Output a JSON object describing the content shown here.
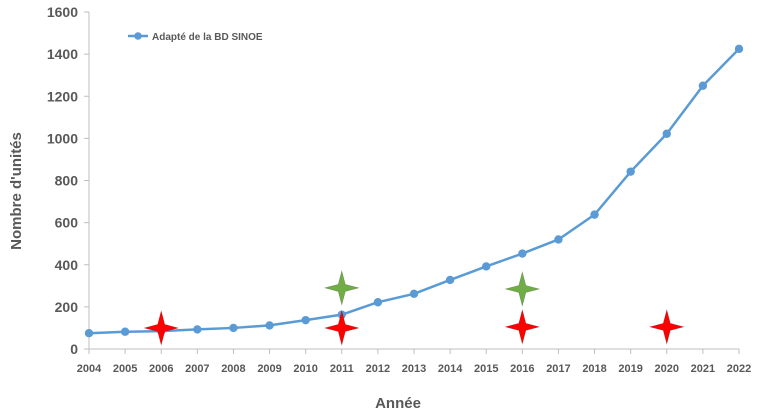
{
  "chart_data": {
    "type": "line",
    "xlabel": "Année",
    "ylabel": "Nombre d'unités",
    "ylim": [
      0,
      1600
    ],
    "yticks": [
      0,
      200,
      400,
      600,
      800,
      1000,
      1200,
      1400,
      1600
    ],
    "x": [
      2004,
      2005,
      2006,
      2007,
      2008,
      2009,
      2010,
      2011,
      2012,
      2013,
      2014,
      2015,
      2016,
      2017,
      2018,
      2019,
      2020,
      2021,
      2022
    ],
    "series": [
      {
        "name": "Adapté de la BD SINOE",
        "color": "#5b9bd5",
        "values": [
          75,
          82,
          85,
          93,
          100,
          112,
          137,
          163,
          222,
          262,
          328,
          392,
          453,
          520,
          638,
          842,
          1022,
          1250,
          1425
        ]
      }
    ],
    "legend_position": "top-left",
    "grid": false,
    "markers": [
      {
        "shape": "four-point-star",
        "color": "#ff0000",
        "x": 2006,
        "y": 100
      },
      {
        "shape": "four-point-star",
        "color": "#ff0000",
        "x": 2011,
        "y": 100
      },
      {
        "shape": "four-point-star",
        "color": "#70ad47",
        "x": 2011,
        "y": 290
      },
      {
        "shape": "four-point-star",
        "color": "#ff0000",
        "x": 2016,
        "y": 105
      },
      {
        "shape": "four-point-star",
        "color": "#70ad47",
        "x": 2016,
        "y": 285
      },
      {
        "shape": "four-point-star",
        "color": "#ff0000",
        "x": 2020,
        "y": 105
      }
    ]
  }
}
